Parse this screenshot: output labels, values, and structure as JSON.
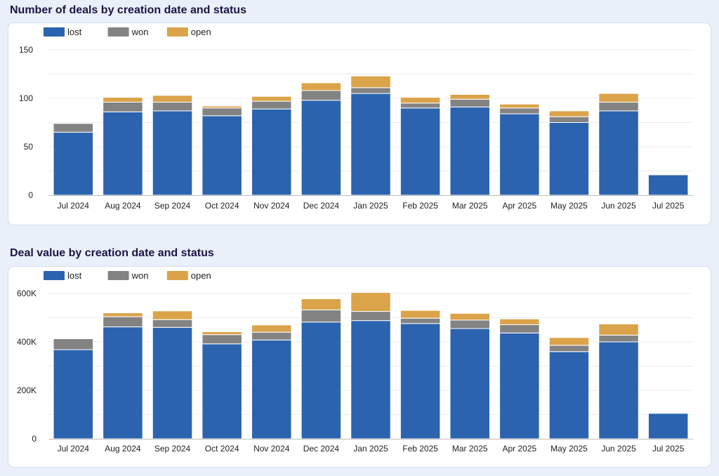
{
  "colors": {
    "lost": "#2b63ae",
    "won": "#838383",
    "open": "#dba34a",
    "grid": "#ececec",
    "axis": "#bcbcbc"
  },
  "chart_data": [
    {
      "type": "bar",
      "stacked": true,
      "title": "Number of deals by creation date and status",
      "xlabel": "",
      "ylabel": "",
      "categories": [
        "Jul 2024",
        "Aug 2024",
        "Sep 2024",
        "Oct 2024",
        "Nov 2024",
        "Dec 2024",
        "Jan 2025",
        "Feb 2025",
        "Mar 2025",
        "Apr 2025",
        "May 2025",
        "Jun 2025",
        "Jul 2025"
      ],
      "series": [
        {
          "name": "lost",
          "values": [
            65,
            86,
            87,
            82,
            89,
            98,
            105,
            90,
            91,
            84,
            75,
            87,
            21
          ]
        },
        {
          "name": "won",
          "values": [
            9,
            10,
            9,
            8,
            8,
            10,
            6,
            5,
            8,
            6,
            6,
            9,
            0
          ]
        },
        {
          "name": "open",
          "values": [
            0,
            5,
            7,
            2,
            5,
            8,
            12,
            6,
            5,
            4,
            6,
            9,
            0
          ]
        }
      ],
      "ylim": [
        0,
        150
      ],
      "yticks": [
        0,
        50,
        100,
        150
      ],
      "ytick_labels": [
        "0",
        "50",
        "100",
        "150"
      ],
      "legend": "top-left"
    },
    {
      "type": "bar",
      "stacked": true,
      "title": "Deal value by creation date and status",
      "xlabel": "",
      "ylabel": "",
      "categories": [
        "Jul 2024",
        "Aug 2024",
        "Sep 2024",
        "Oct 2024",
        "Nov 2024",
        "Dec 2024",
        "Jan 2025",
        "Feb 2025",
        "Mar 2025",
        "Apr 2025",
        "May 2025",
        "Jun 2025",
        "Jul 2025"
      ],
      "series": [
        {
          "name": "lost",
          "values": [
            368000,
            462000,
            460000,
            392000,
            408000,
            482000,
            488000,
            476000,
            455000,
            437000,
            360000,
            400000,
            105000
          ]
        },
        {
          "name": "won",
          "values": [
            45000,
            42000,
            32000,
            38000,
            32000,
            50000,
            38000,
            22000,
            35000,
            34000,
            26000,
            28000,
            0
          ]
        },
        {
          "name": "open",
          "values": [
            0,
            16000,
            36000,
            12000,
            30000,
            46000,
            78000,
            32000,
            28000,
            24000,
            32000,
            46000,
            0
          ]
        }
      ],
      "ylim": [
        0,
        600000
      ],
      "yticks": [
        0,
        200000,
        400000,
        600000
      ],
      "ytick_labels": [
        "0",
        "200K",
        "400K",
        "600K"
      ],
      "legend": "top-left"
    }
  ]
}
